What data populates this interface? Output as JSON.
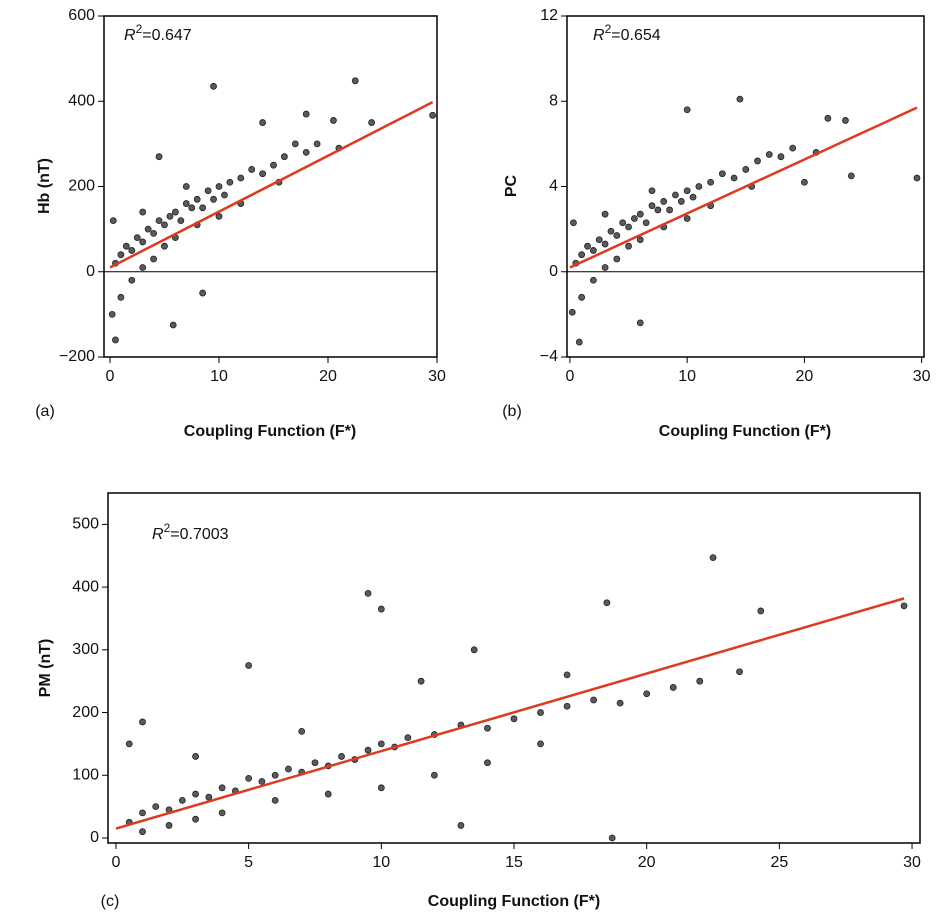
{
  "chart_data": [
    {
      "type": "scatter",
      "panel_label": "(a)",
      "xlabel": "Coupling Function (F*)",
      "ylabel": "Hb (nT)",
      "annotation": {
        "symbol": "R",
        "exponent": "2",
        "text": "=0.647"
      },
      "xlim": [
        -0.55,
        30
      ],
      "ylim": [
        -200,
        600
      ],
      "xticks": [
        0,
        10,
        20,
        30
      ],
      "yticks": [
        {
          "value": -200,
          "label": "−200"
        },
        0,
        200,
        400,
        600
      ],
      "hline": 0,
      "color": "#5a5a5a",
      "x": [
        9.5,
        22.5,
        29.6,
        5.8,
        8.5,
        4.5,
        0.5,
        14,
        18,
        20.5,
        0.5,
        1,
        1.5,
        2,
        2.5,
        3,
        3.5,
        4,
        4.5,
        5,
        5.5,
        6,
        6.5,
        7,
        7.5,
        8,
        8.5,
        9,
        9.5,
        10,
        10.5,
        11,
        12,
        13,
        14,
        15,
        16,
        17,
        18,
        19,
        1,
        2,
        3,
        4,
        5,
        0.2,
        0.3,
        6,
        8,
        10,
        12,
        24,
        21,
        15.5,
        7,
        3
      ],
      "values": [
        435,
        448,
        367,
        -125,
        -50,
        270,
        -160,
        350,
        370,
        355,
        20,
        40,
        60,
        50,
        80,
        70,
        100,
        90,
        120,
        110,
        130,
        140,
        120,
        160,
        150,
        170,
        150,
        190,
        170,
        200,
        180,
        210,
        220,
        240,
        230,
        250,
        270,
        300,
        280,
        300,
        -60,
        -20,
        10,
        30,
        60,
        -100,
        120,
        80,
        110,
        130,
        160,
        350,
        290,
        210,
        200,
        140
      ],
      "fit": {
        "color": "#e03a1e",
        "x": [
          0,
          29.6
        ],
        "values": [
          10,
          398
        ]
      }
    },
    {
      "type": "scatter",
      "panel_label": "(b)",
      "xlabel": "Coupling Function (F*)",
      "ylabel": "PC",
      "annotation": {
        "symbol": "R",
        "exponent": "2",
        "text": "=0.654"
      },
      "xlim": [
        -0.25,
        30.2
      ],
      "ylim": [
        -4,
        12
      ],
      "xticks": [
        0,
        10,
        20,
        30
      ],
      "yticks": [
        {
          "value": -4,
          "label": "−4"
        },
        0,
        4,
        8,
        12
      ],
      "hline": 0,
      "color": "#5a5a5a",
      "x": [
        10,
        14.5,
        29.6,
        6,
        0.8,
        22,
        23.5,
        24,
        0.5,
        1,
        1.5,
        2,
        2.5,
        3,
        3.5,
        4,
        4.5,
        5,
        5.5,
        6,
        6.5,
        7,
        7.5,
        8,
        8.5,
        9,
        9.5,
        10,
        10.5,
        11,
        12,
        13,
        14,
        15,
        16,
        17,
        18,
        19,
        1,
        2,
        3,
        4,
        5,
        0.2,
        0.3,
        6,
        8,
        10,
        12,
        21,
        15.5,
        7,
        3,
        20
      ],
      "values": [
        7.6,
        8.1,
        4.4,
        -2.4,
        -3.3,
        7.2,
        7.1,
        4.5,
        0.4,
        0.8,
        1.2,
        1.0,
        1.5,
        1.3,
        1.9,
        1.7,
        2.3,
        2.1,
        2.5,
        2.7,
        2.3,
        3.1,
        2.9,
        3.3,
        2.9,
        3.6,
        3.3,
        3.8,
        3.5,
        4.0,
        4.2,
        4.6,
        4.4,
        4.8,
        5.2,
        5.5,
        5.4,
        5.8,
        -1.2,
        -0.4,
        0.2,
        0.6,
        1.2,
        -1.9,
        2.3,
        1.5,
        2.1,
        2.5,
        3.1,
        5.6,
        4.0,
        3.8,
        2.7,
        4.2
      ],
      "fit": {
        "color": "#e03a1e",
        "x": [
          0,
          29.6
        ],
        "values": [
          0.2,
          7.7
        ]
      }
    },
    {
      "type": "scatter",
      "panel_label": "(c)",
      "xlabel": "Coupling Function (F*)",
      "ylabel": "PM (nT)",
      "annotation": {
        "symbol": "R",
        "exponent": "2",
        "text": "=0.7003"
      },
      "xlim": [
        -0.3,
        30.3
      ],
      "ylim": [
        -8,
        550
      ],
      "xticks": [
        0,
        5,
        10,
        15,
        20,
        25,
        30
      ],
      "yticks": [
        0,
        100,
        200,
        300,
        400,
        500
      ],
      "color": "#5a5a5a",
      "x": [
        9.5,
        10,
        22.5,
        24.3,
        29.7,
        5,
        1,
        18.5,
        18.7,
        13,
        0.5,
        0.5,
        1,
        1.5,
        2,
        2.5,
        3,
        3.5,
        4,
        4.5,
        5,
        5.5,
        6,
        6.5,
        7,
        7.5,
        8,
        8.5,
        9,
        9.5,
        10,
        10.5,
        11,
        12,
        13,
        14,
        15,
        16,
        17,
        18,
        19,
        20,
        21,
        22,
        23.5,
        1,
        2,
        3,
        4,
        6,
        8,
        10,
        12,
        14,
        16,
        7,
        3,
        11.5,
        13.5,
        17
      ],
      "values": [
        390,
        365,
        447,
        362,
        370,
        275,
        185,
        375,
        0,
        20,
        150,
        25,
        40,
        50,
        45,
        60,
        70,
        65,
        80,
        75,
        95,
        90,
        100,
        110,
        105,
        120,
        115,
        130,
        125,
        140,
        150,
        145,
        160,
        165,
        180,
        175,
        190,
        200,
        210,
        220,
        215,
        230,
        240,
        250,
        265,
        10,
        20,
        30,
        40,
        60,
        70,
        80,
        100,
        120,
        150,
        170,
        130,
        250,
        300,
        260
      ],
      "fit": {
        "color": "#e03a1e",
        "x": [
          0,
          29.7
        ],
        "values": [
          15,
          382
        ]
      }
    }
  ]
}
